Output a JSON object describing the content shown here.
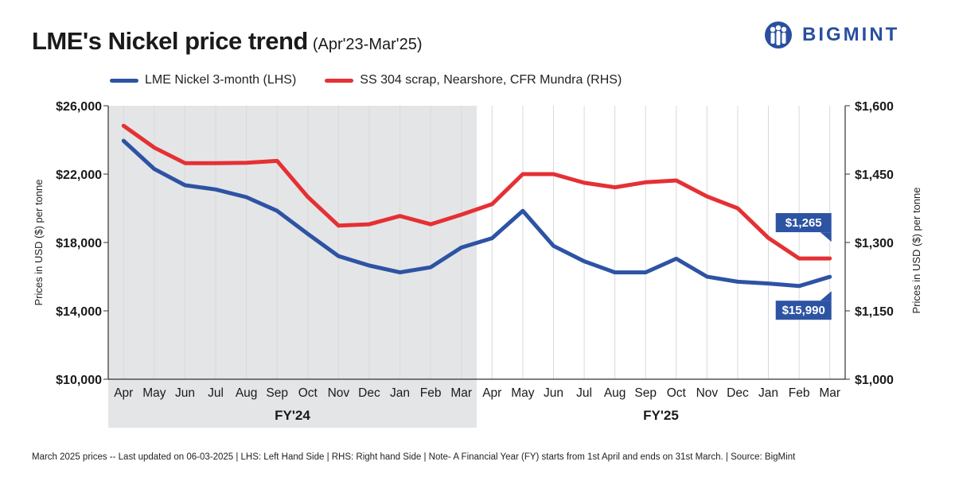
{
  "header": {
    "title": "LME's Nickel price trend",
    "subtitle": "(Apr'23-Mar'25)",
    "brand": "BIGMINT",
    "brand_color": "#2a4fa0"
  },
  "legend": [
    {
      "name": "LME Nickel 3-month (LHS)",
      "color": "#2d53a3"
    },
    {
      "name": "SS 304 scrap, Nearshore, CFR Mundra (RHS)",
      "color": "#e53034"
    }
  ],
  "footer": "March 2025 prices -- Last updated on 06-03-2025  |  LHS: Left Hand Side  |  RHS: Right hand Side  |  Note- A Financial Year (FY) starts from 1st April and ends on 31st March.  |  Source: BigMint",
  "chart_data": {
    "type": "line",
    "categories": [
      "Apr",
      "May",
      "Jun",
      "Jul",
      "Aug",
      "Sep",
      "Oct",
      "Nov",
      "Dec",
      "Jan",
      "Feb",
      "Mar",
      "Apr",
      "May",
      "Jun",
      "Jul",
      "Aug",
      "Sep",
      "Oct",
      "Nov",
      "Dec",
      "Jan",
      "Feb",
      "Mar"
    ],
    "periods": [
      {
        "label": "FY'24",
        "shaded": true,
        "start": 0,
        "end": 11
      },
      {
        "label": "FY'25",
        "shaded": false,
        "start": 12,
        "end": 23
      }
    ],
    "ylabel_left": "Prices in USD ($) per tonne",
    "ylabel_right": "Prices in USD ($) per tonne",
    "ylim_left": [
      10000,
      26000
    ],
    "ylim_right": [
      1000,
      1600
    ],
    "yticks_left": [
      "$10,000",
      "$14,000",
      "$18,000",
      "$22,000",
      "$26,000"
    ],
    "yticks_left_values": [
      10000,
      14000,
      18000,
      22000,
      26000
    ],
    "yticks_right": [
      "$1,000",
      "$1,150",
      "$1,300",
      "$1,450",
      "$1,600"
    ],
    "yticks_right_values": [
      1000,
      1150,
      1300,
      1450,
      1600
    ],
    "grid": "vertical",
    "series": [
      {
        "name": "LME Nickel 3-month (LHS)",
        "axis": "left",
        "color": "#2d53a3",
        "values": [
          23950,
          22300,
          21350,
          21100,
          20650,
          19850,
          18500,
          17200,
          16650,
          16250,
          16550,
          17700,
          18250,
          19850,
          17800,
          16900,
          16250,
          16250,
          17050,
          16000,
          15700,
          15600,
          15450,
          15990
        ]
      },
      {
        "name": "SS 304 scrap, Nearshore, CFR Mundra (RHS)",
        "axis": "right",
        "color": "#e53034",
        "values": [
          1556,
          1508,
          1474,
          1474,
          1475,
          1479,
          1400,
          1337,
          1340,
          1358,
          1340,
          1361,
          1384,
          1450,
          1450,
          1431,
          1421,
          1432,
          1436,
          1401,
          1375,
          1310,
          1265,
          1265
        ]
      }
    ],
    "annotations": [
      {
        "text": "$1,265",
        "series": 1,
        "index": 23,
        "color": "#2d53a3"
      },
      {
        "text": "$15,990",
        "series": 0,
        "index": 23,
        "color": "#2d53a3"
      }
    ]
  }
}
